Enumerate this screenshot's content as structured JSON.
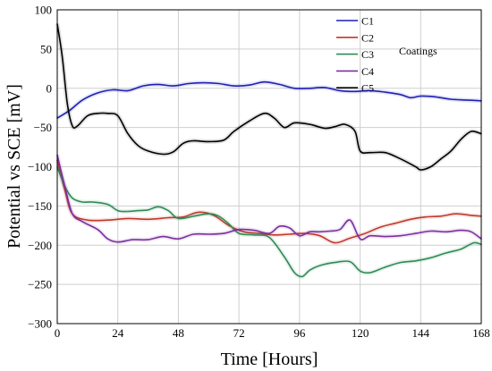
{
  "chart_data": {
    "type": "line",
    "xlabel": "Time [Hours]",
    "ylabel": "Potential vs SCE  [mV]",
    "xlim": [
      0,
      168
    ],
    "ylim": [
      -300,
      100
    ],
    "xticks": [
      0,
      24,
      48,
      72,
      96,
      120,
      144,
      168
    ],
    "yticks": [
      100,
      50,
      0,
      -50,
      -100,
      -150,
      -200,
      -250,
      -300
    ],
    "grid": true,
    "legend": {
      "position": "top-right",
      "note": "Coatings"
    },
    "series": [
      {
        "name": "C1",
        "color": "#1f1fb4",
        "x": [
          0,
          5,
          10,
          16,
          22,
          28,
          34,
          40,
          46,
          52,
          58,
          64,
          70,
          76,
          82,
          88,
          94,
          100,
          106,
          112,
          118,
          124,
          130,
          136,
          140,
          144,
          150,
          156,
          162,
          168
        ],
        "y": [
          -38,
          -28,
          -15,
          -6,
          -2,
          -3,
          3,
          5,
          3,
          6,
          7,
          6,
          3,
          4,
          8,
          5,
          0,
          0,
          1,
          -3,
          -4,
          -3,
          -5,
          -8,
          -12,
          -10,
          -11,
          -14,
          -15,
          -16
        ]
      },
      {
        "name": "C2",
        "color": "#c0392b",
        "x": [
          0,
          3,
          6,
          12,
          20,
          28,
          36,
          44,
          50,
          56,
          62,
          68,
          74,
          80,
          86,
          92,
          98,
          104,
          110,
          116,
          122,
          128,
          134,
          140,
          146,
          152,
          158,
          164,
          168
        ],
        "y": [
          -92,
          -130,
          -160,
          -168,
          -168,
          -166,
          -167,
          -165,
          -164,
          -158,
          -162,
          -175,
          -183,
          -185,
          -187,
          -186,
          -185,
          -188,
          -197,
          -191,
          -185,
          -177,
          -172,
          -167,
          -164,
          -163,
          -160,
          -162,
          -163
        ]
      },
      {
        "name": "C3",
        "color": "#2e8b57",
        "x": [
          0,
          3,
          6,
          10,
          14,
          20,
          24,
          28,
          32,
          36,
          40,
          44,
          48,
          54,
          60,
          64,
          68,
          72,
          78,
          84,
          90,
          94,
          97,
          100,
          104,
          110,
          116,
          120,
          124,
          130,
          136,
          142,
          148,
          154,
          160,
          165,
          168
        ],
        "y": [
          -100,
          -125,
          -140,
          -145,
          -145,
          -148,
          -156,
          -157,
          -156,
          -155,
          -151,
          -156,
          -166,
          -163,
          -160,
          -163,
          -173,
          -185,
          -187,
          -190,
          -215,
          -235,
          -240,
          -232,
          -226,
          -222,
          -221,
          -233,
          -235,
          -228,
          -222,
          -220,
          -216,
          -210,
          -205,
          -197,
          -199
        ]
      },
      {
        "name": "C4",
        "color": "#7b2fa0",
        "x": [
          0,
          3,
          6,
          10,
          16,
          20,
          24,
          30,
          36,
          42,
          48,
          54,
          60,
          66,
          72,
          78,
          84,
          88,
          92,
          96,
          100,
          104,
          108,
          112,
          116,
          120,
          124,
          130,
          136,
          142,
          148,
          154,
          160,
          164,
          168
        ],
        "y": [
          -85,
          -125,
          -160,
          -170,
          -180,
          -192,
          -196,
          -193,
          -193,
          -189,
          -192,
          -186,
          -186,
          -185,
          -180,
          -181,
          -185,
          -176,
          -178,
          -188,
          -183,
          -183,
          -182,
          -180,
          -168,
          -192,
          -188,
          -189,
          -188,
          -185,
          -182,
          -183,
          -181,
          -183,
          -192
        ]
      },
      {
        "name": "C5",
        "color": "#000000",
        "x": [
          0,
          2,
          4,
          6,
          8,
          12,
          16,
          20,
          24,
          28,
          32,
          36,
          42,
          46,
          50,
          54,
          60,
          66,
          70,
          76,
          82,
          86,
          90,
          94,
          100,
          106,
          110,
          114,
          118,
          120,
          124,
          130,
          136,
          142,
          144,
          148,
          152,
          156,
          160,
          164,
          168
        ],
        "y": [
          82,
          40,
          -20,
          -48,
          -48,
          -35,
          -32,
          -32,
          -35,
          -58,
          -73,
          -80,
          -84,
          -81,
          -70,
          -67,
          -68,
          -66,
          -55,
          -42,
          -32,
          -38,
          -50,
          -44,
          -46,
          -51,
          -49,
          -46,
          -55,
          -80,
          -82,
          -82,
          -90,
          -100,
          -104,
          -100,
          -90,
          -80,
          -65,
          -55,
          -58
        ]
      }
    ]
  }
}
